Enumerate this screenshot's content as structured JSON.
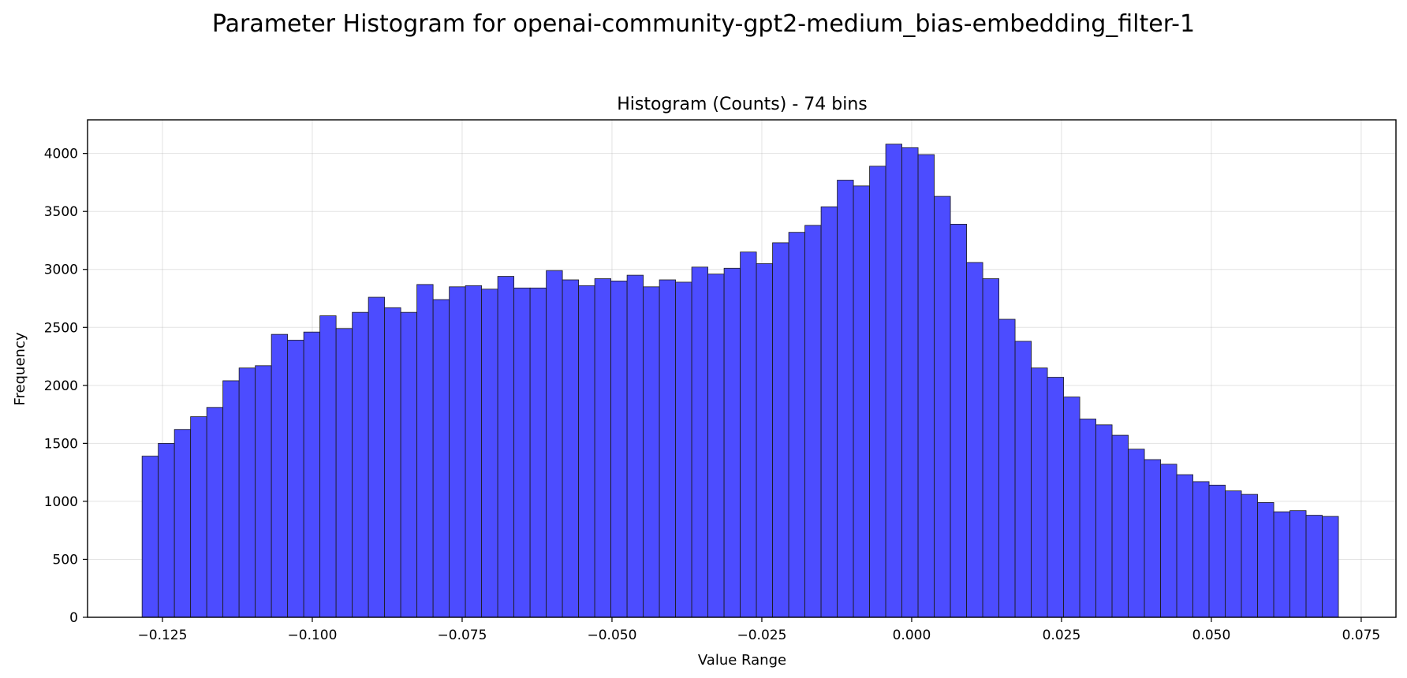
{
  "chart_data": {
    "type": "bar",
    "suptitle": "Parameter Histogram for openai-community-gpt2-medium_bias-embedding_filter-1",
    "title": "Histogram (Counts) - 74 bins",
    "xlabel": "Value Range",
    "ylabel": "Frequency",
    "xlim": [
      -0.1375,
      0.0808
    ],
    "ylim": [
      0,
      4290
    ],
    "xticks": [
      -0.125,
      -0.1,
      -0.075,
      -0.05,
      -0.025,
      0.0,
      0.025,
      0.05,
      0.075
    ],
    "xtick_labels": [
      "−0.125",
      "−0.100",
      "−0.075",
      "−0.050",
      "−0.025",
      "0.000",
      "0.025",
      "0.050",
      "0.075"
    ],
    "yticks": [
      0,
      500,
      1000,
      1500,
      2000,
      2500,
      3000,
      3500,
      4000
    ],
    "ytick_labels": [
      "0",
      "500",
      "1000",
      "1500",
      "2000",
      "2500",
      "3000",
      "3500",
      "4000"
    ],
    "grid": true,
    "bar_color": "#4c4cff",
    "bin_start": -0.1284,
    "bin_end": 0.0712,
    "values": [
      1390,
      1500,
      1620,
      1730,
      1810,
      2040,
      2150,
      2170,
      2440,
      2390,
      2460,
      2600,
      2490,
      2630,
      2760,
      2670,
      2630,
      2870,
      2740,
      2850,
      2860,
      2830,
      2940,
      2840,
      2840,
      2990,
      2910,
      2860,
      2920,
      2900,
      2950,
      2850,
      2910,
      2890,
      3020,
      2960,
      3010,
      3150,
      3050,
      3230,
      3320,
      3380,
      3540,
      3770,
      3720,
      3890,
      4080,
      4050,
      3990,
      3630,
      3390,
      3060,
      2920,
      2570,
      2380,
      2150,
      2070,
      1900,
      1710,
      1660,
      1570,
      1450,
      1360,
      1320,
      1230,
      1170,
      1140,
      1090,
      1060,
      990,
      910,
      920,
      880,
      870
    ]
  }
}
